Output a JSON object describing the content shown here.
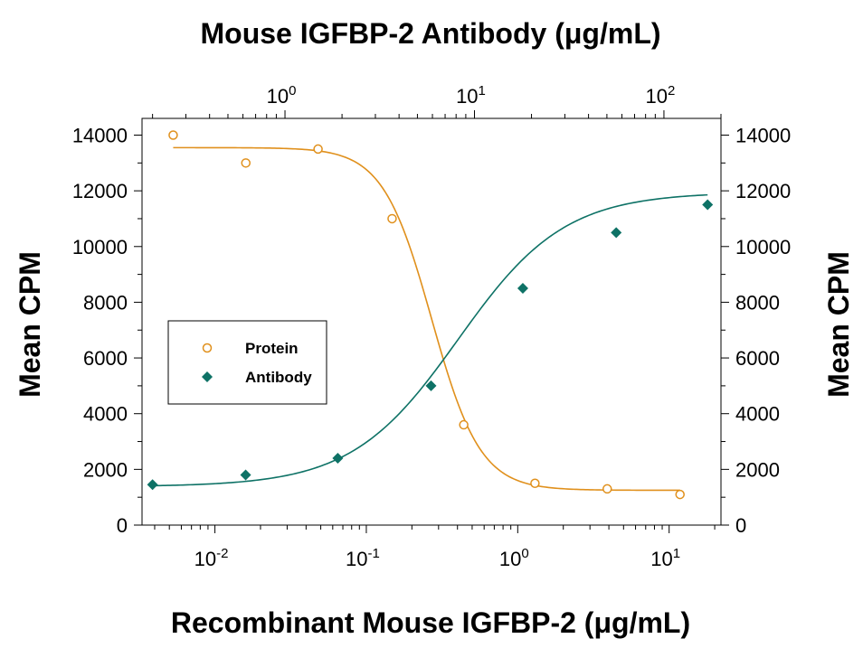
{
  "chart_data": {
    "type": "scatter",
    "title": "Mouse IGFBP-2 Antibody (μg/mL)",
    "xlabel": "Recombinant Mouse IGFBP-2 (μg/mL)",
    "ylabel": "Mean CPM",
    "y2label": "Mean CPM",
    "x_scale": "log",
    "x2_scale": "log",
    "xlim": [
      0.0033,
      22
    ],
    "x2lim": [
      0.176,
      200
    ],
    "ylim": [
      0,
      14600
    ],
    "x_ticks": [
      {
        "base": "10",
        "exp": "-2"
      },
      {
        "base": "10",
        "exp": "-1"
      },
      {
        "base": "10",
        "exp": "0"
      },
      {
        "base": "10",
        "exp": "1"
      }
    ],
    "x2_ticks": [
      {
        "base": "10",
        "exp": "0"
      },
      {
        "base": "10",
        "exp": "1"
      },
      {
        "base": "10",
        "exp": "2"
      }
    ],
    "y_ticks": [
      "0",
      "2000",
      "4000",
      "6000",
      "8000",
      "10000",
      "12000",
      "14000"
    ],
    "y2_ticks": [
      "0",
      "2000",
      "4000",
      "6000",
      "8000",
      "10000",
      "12000",
      "14000"
    ],
    "legend": {
      "position": "left-center",
      "entries": [
        "Protein",
        "Antibody"
      ]
    },
    "series": [
      {
        "name": "Protein",
        "axis": "bottom",
        "color": "#e0901c",
        "marker": "open-circle",
        "x": [
          0.0053,
          0.016,
          0.048,
          0.148,
          0.44,
          1.3,
          3.9,
          11.8
        ],
        "y": [
          14000,
          13000,
          13500,
          11000,
          3600,
          1500,
          1300,
          1100
        ],
        "fit": {
          "model": "4PL",
          "top": 13550,
          "bottom": 1250,
          "ec50": 0.27,
          "hill": -2.7
        }
      },
      {
        "name": "Antibody",
        "axis": "top",
        "color": "#0e7266",
        "marker": "filled-diamond",
        "x": [
          0.2,
          0.62,
          1.9,
          5.9,
          18,
          56,
          170
        ],
        "y": [
          1450,
          1800,
          2400,
          5000,
          8500,
          10500,
          11500
        ],
        "fit": {
          "model": "4PL",
          "top": 11950,
          "bottom": 1380,
          "ec50": 8.2,
          "hill": 1.55
        }
      }
    ]
  }
}
